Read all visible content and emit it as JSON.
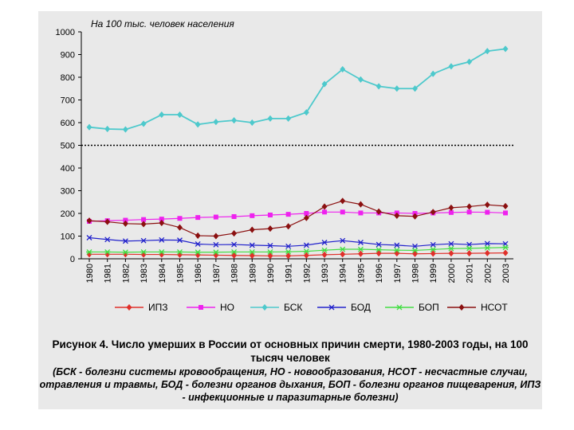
{
  "chart_data": {
    "type": "line",
    "annotation": "На 100 тыс. человек населения",
    "x": [
      "1980",
      "1981",
      "1982",
      "1983",
      "1984",
      "1985",
      "1986",
      "1987",
      "1988",
      "1989",
      "1990",
      "1991",
      "1992",
      "1993",
      "1994",
      "1995",
      "1996",
      "1997",
      "1998",
      "1999",
      "2000",
      "2001",
      "2002",
      "2003"
    ],
    "ylim": [
      0,
      1000
    ],
    "yticks": [
      "0",
      "100",
      "200",
      "300",
      "400",
      "500",
      "600",
      "700",
      "800",
      "900",
      "1000"
    ],
    "series": [
      {
        "name": "ИПЗ",
        "color": "#e0302a",
        "marker": "diamond",
        "values": [
          20,
          20,
          20,
          19,
          19,
          18,
          17,
          16,
          15,
          14,
          13,
          13,
          15,
          18,
          20,
          22,
          24,
          24,
          22,
          23,
          24,
          24,
          25,
          26
        ]
      },
      {
        "name": "НО",
        "color": "#ee22ee",
        "marker": "square",
        "values": [
          165,
          168,
          170,
          173,
          175,
          178,
          182,
          184,
          186,
          190,
          193,
          196,
          200,
          206,
          206,
          202,
          202,
          202,
          200,
          202,
          204,
          206,
          205,
          202
        ]
      },
      {
        "name": "БСК",
        "color": "#4dc9cc",
        "marker": "diamond",
        "values": [
          580,
          572,
          570,
          595,
          635,
          635,
          592,
          603,
          610,
          600,
          618,
          618,
          645,
          770,
          835,
          790,
          760,
          750,
          750,
          815,
          848,
          868,
          915,
          925
        ]
      },
      {
        "name": "БОД",
        "color": "#2222cc",
        "marker": "x",
        "values": [
          93,
          85,
          78,
          80,
          83,
          82,
          65,
          62,
          63,
          60,
          58,
          55,
          60,
          72,
          80,
          72,
          63,
          60,
          55,
          62,
          66,
          63,
          67,
          66
        ]
      },
      {
        "name": "БОП",
        "color": "#44dd44",
        "marker": "star",
        "values": [
          30,
          30,
          29,
          30,
          30,
          30,
          29,
          29,
          30,
          30,
          30,
          31,
          33,
          38,
          42,
          42,
          40,
          38,
          37,
          41,
          45,
          46,
          48,
          50
        ]
      },
      {
        "name": "НСОТ",
        "color": "#8b1010",
        "marker": "diamond",
        "values": [
          168,
          163,
          155,
          153,
          158,
          138,
          102,
          100,
          112,
          128,
          133,
          143,
          180,
          230,
          255,
          240,
          208,
          190,
          187,
          206,
          225,
          230,
          238,
          232
        ]
      }
    ],
    "reference_line": 500
  },
  "caption": {
    "title": "Рисунок 4. Число умерших в России от основных причин смерти, 1980-2003 годы, на 100 тысяч человек",
    "note": "(БСК - болезни системы кровообращения, НО - новообразования, НСОТ - несчастные случаи, отравления и травмы, БОД - болезни органов дыхания, БОП - болезни органов пищеварения, ИПЗ - инфекционные и паразитарные болезни)"
  }
}
